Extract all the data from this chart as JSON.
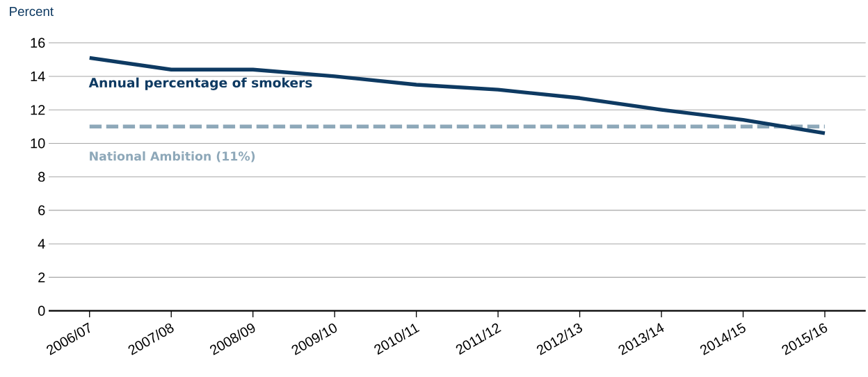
{
  "chart_data": {
    "type": "line",
    "ylabel": "Percent",
    "categories": [
      "2006/07",
      "2007/08",
      "2008/09",
      "2009/10",
      "2010/11",
      "2011/12",
      "2012/13",
      "2013/14",
      "2014/15",
      "2015/16"
    ],
    "series": [
      {
        "name": "Annual percentage of smokers",
        "color": "#0e3a62",
        "values": [
          15.1,
          14.4,
          14.4,
          14.0,
          13.5,
          13.2,
          12.7,
          12.0,
          11.4,
          10.6
        ]
      }
    ],
    "ref_lines": [
      {
        "axis": "y",
        "value": 11,
        "label": "National Ambition (11%)",
        "color": "#8ea8b9",
        "line_style": "dashed"
      }
    ],
    "ylim": [
      0,
      16
    ],
    "yticks": [
      0,
      2,
      4,
      6,
      8,
      10,
      12,
      14,
      16
    ],
    "grid": "y",
    "legend": false,
    "marker": "none",
    "line_style": "solid"
  }
}
